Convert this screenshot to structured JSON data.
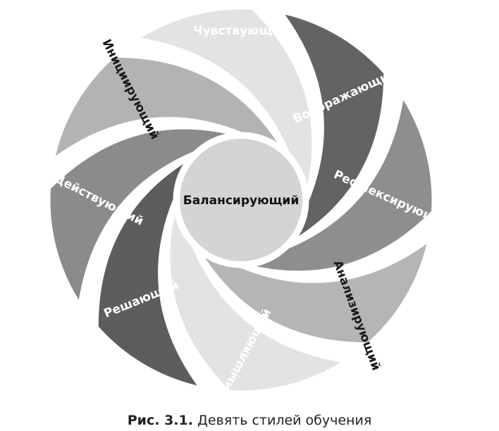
{
  "diagram": {
    "center_label": "Балансирующий",
    "center_color": "#d4d4d4",
    "segments": [
      {
        "label": "Чувствующий",
        "fill": "#636363",
        "text_color": "#ffffff"
      },
      {
        "label": "Воображающий",
        "fill": "#8e8e8e",
        "text_color": "#ffffff"
      },
      {
        "label": "Рефлексирующий",
        "fill": "#b5b5b5",
        "text_color": "#ffffff"
      },
      {
        "label": "Анализирующий",
        "fill": "#e3e3e3",
        "text_color": "#1a1a1a"
      },
      {
        "label": "Размышляющий",
        "fill": "#5d5d5d",
        "text_color": "#ffffff"
      },
      {
        "label": "Решающий",
        "fill": "#8b8b8b",
        "text_color": "#ffffff"
      },
      {
        "label": "Действующий",
        "fill": "#b3b3b3",
        "text_color": "#ffffff"
      },
      {
        "label": "Инициирующий",
        "fill": "#e3e3e3",
        "text_color": "#1a1a1a"
      }
    ]
  },
  "caption": {
    "number": "Рис. 3.1.",
    "text": "Девять стилей обучения"
  }
}
